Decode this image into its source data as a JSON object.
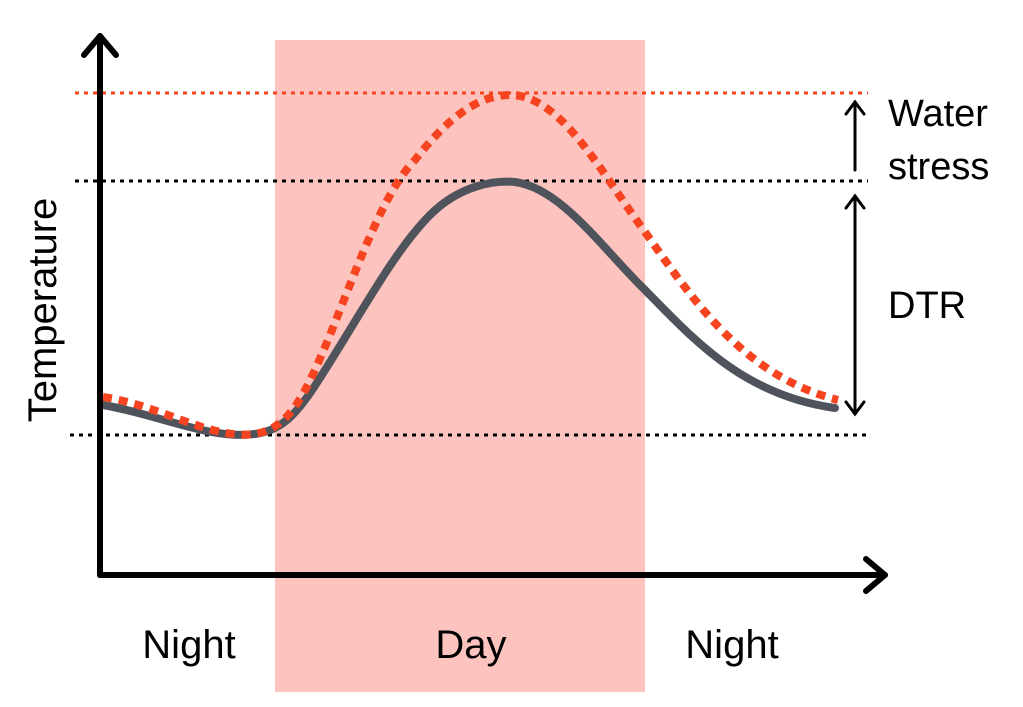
{
  "axes": {
    "ylabel": "Temperature"
  },
  "periods": {
    "night1": "Night",
    "day": "Day",
    "night2": "Night"
  },
  "annotations": {
    "water_stress_line1": "Water",
    "water_stress_line2": "stress",
    "dtr": "DTR"
  },
  "colors": {
    "day_shade": "#fdc3bf",
    "stressed_curve": "#f5441f",
    "normal_curve": "#4f545c",
    "axis": "#000000"
  }
}
